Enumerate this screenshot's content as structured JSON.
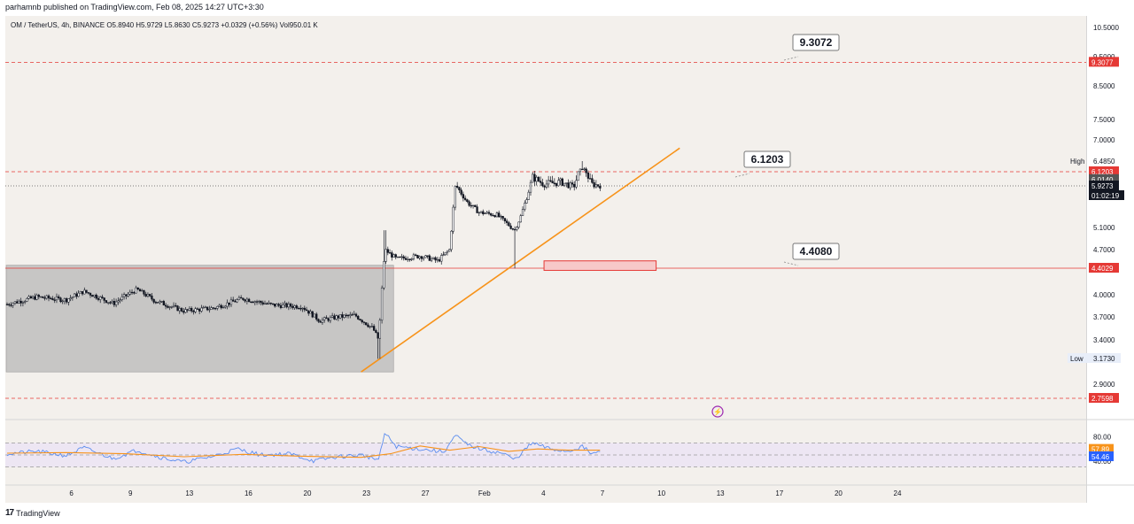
{
  "header": {
    "publisher": "parhamnb published on TradingView.com, Feb 08, 2025 14:27 UTC+3:30",
    "symbol_line": "OM / TetherUS, 4h, BINANCE  O5.8940  H5.9729  L5.8630  C5.9273  +0.0329 (+0.56%)  Vol950.01 K"
  },
  "footer": {
    "logo_text": "TradingView",
    "logo_mark": "17"
  },
  "colors": {
    "background": "#f3f0ec",
    "candle": "#131722",
    "trendline": "#f7931a",
    "resistance_red": "#e53935",
    "zone_gray": "#b8b8b8",
    "rsi_line": "#5b8def",
    "rsi_ma": "#f7931a",
    "rsi_band": "#ede6f3"
  },
  "chart_data": [
    {
      "type": "candlestick",
      "title": "",
      "x_ticks": [
        "6",
        "9",
        "13",
        "16",
        "20",
        "23",
        "27",
        "Feb",
        "4",
        "7",
        "10",
        "13",
        "17",
        "20",
        "24"
      ],
      "price_ticks": [
        {
          "label": "10.5000",
          "value": 10.5
        },
        {
          "label": "9.5000",
          "value": 9.5
        },
        {
          "label": "8.5000",
          "value": 8.5
        },
        {
          "label": "7.5000",
          "value": 7.5
        },
        {
          "label": "7.0000",
          "value": 7.0
        },
        {
          "label": "5.1000",
          "value": 5.1
        },
        {
          "label": "4.7000",
          "value": 4.7
        },
        {
          "label": "4.0000",
          "value": 4.0
        },
        {
          "label": "3.7000",
          "value": 3.7
        },
        {
          "label": "3.4000",
          "value": 3.4
        },
        {
          "label": "2.9000",
          "value": 2.9
        }
      ],
      "axis_badges": [
        {
          "label": "9.3077",
          "value": 9.3077,
          "color": "#e53935"
        },
        {
          "label": "6.1203",
          "value": 6.1203,
          "color": "#e53935"
        },
        {
          "label": "6.0140",
          "value": 6.014,
          "color": "#555555"
        },
        {
          "label": "5.9273",
          "value": 5.9273,
          "color": "#131722"
        },
        {
          "label": "4.4029",
          "value": 4.4029,
          "color": "#e53935"
        },
        {
          "label": "2.7598",
          "value": 2.7598,
          "color": "#e53935"
        }
      ],
      "countdown": "01:02:19",
      "high": {
        "label": "High",
        "value": "6.4850"
      },
      "low": {
        "label": "Low",
        "value": "3.1730"
      },
      "callouts": [
        {
          "label": "9.3072",
          "value": 9.3072
        },
        {
          "label": "6.1203",
          "value": 6.1203
        },
        {
          "label": "4.4080",
          "value": 4.408
        }
      ],
      "horizontal_levels": [
        {
          "value": 9.3077,
          "style": "dashed",
          "color": "#e53935"
        },
        {
          "value": 6.1203,
          "style": "dashed",
          "color": "#e53935"
        },
        {
          "value": 5.9273,
          "style": "dotted",
          "color": "#555555"
        },
        {
          "value": 4.4029,
          "style": "solid",
          "color": "#e53935"
        },
        {
          "value": 2.7598,
          "style": "dashed",
          "color": "#e53935"
        }
      ],
      "key_prices": [
        {
          "seg": 0,
          "price": 3.87
        },
        {
          "seg": 0.5,
          "price": 3.97
        },
        {
          "seg": 1.0,
          "price": 3.93
        },
        {
          "seg": 1.3,
          "price": 4.05
        },
        {
          "seg": 1.8,
          "price": 3.88
        },
        {
          "seg": 2.2,
          "price": 4.08
        },
        {
          "seg": 2.5,
          "price": 3.92
        },
        {
          "seg": 3.0,
          "price": 3.78
        },
        {
          "seg": 3.5,
          "price": 3.82
        },
        {
          "seg": 4.0,
          "price": 3.95
        },
        {
          "seg": 4.5,
          "price": 3.86
        },
        {
          "seg": 5.0,
          "price": 3.84
        },
        {
          "seg": 5.3,
          "price": 3.65
        },
        {
          "seg": 5.6,
          "price": 3.7
        },
        {
          "seg": 5.9,
          "price": 3.72
        },
        {
          "seg": 6.2,
          "price": 3.55
        },
        {
          "seg": 6.3,
          "price": 3.4
        },
        {
          "seg": 6.4,
          "price": 4.7
        },
        {
          "seg": 6.6,
          "price": 4.55
        },
        {
          "seg": 7.0,
          "price": 4.6
        },
        {
          "seg": 7.3,
          "price": 4.52
        },
        {
          "seg": 7.5,
          "price": 4.7
        },
        {
          "seg": 7.6,
          "price": 5.95
        },
        {
          "seg": 7.8,
          "price": 5.6
        },
        {
          "seg": 8.0,
          "price": 5.4
        },
        {
          "seg": 8.3,
          "price": 5.35
        },
        {
          "seg": 8.6,
          "price": 5.05
        },
        {
          "seg": 8.7,
          "price": 5.3
        },
        {
          "seg": 8.9,
          "price": 6.05
        },
        {
          "seg": 9.1,
          "price": 5.95
        },
        {
          "seg": 9.4,
          "price": 5.98
        },
        {
          "seg": 9.6,
          "price": 5.9
        },
        {
          "seg": 9.75,
          "price": 6.25
        },
        {
          "seg": 9.9,
          "price": 5.95
        },
        {
          "seg": 10.05,
          "price": 5.93
        }
      ],
      "wick_extremes": [
        {
          "seg": 6.3,
          "price": 3.17
        },
        {
          "seg": 6.4,
          "price": 5.05
        },
        {
          "seg": 8.6,
          "price": 4.4
        },
        {
          "seg": 9.75,
          "price": 6.485
        }
      ],
      "consolidation_zone": {
        "x_start_seg": 0,
        "x_end_seg": 6.55,
        "price_top": 4.45,
        "price_bottom": 3.03
      },
      "target_zone": {
        "x_start_seg": 9.1,
        "x_end_seg": 11.0,
        "price_top": 4.52,
        "price_bottom": 4.37
      },
      "trendline": {
        "from": {
          "seg": 6.0,
          "price": 3.03
        },
        "to": {
          "seg": 11.4,
          "price": 6.8
        }
      }
    },
    {
      "type": "line",
      "title": "",
      "indicator": "RSI",
      "ticks": [
        {
          "label": "80.00",
          "value": 80
        },
        {
          "label": "40.00",
          "value": 40
        }
      ],
      "badges": [
        {
          "label": "57.89",
          "value": 57.89,
          "color": "#f7931a"
        },
        {
          "label": "54.46",
          "value": 54.46,
          "color": "#2962ff"
        }
      ],
      "band_levels": [
        70,
        50,
        30
      ],
      "rsi_points": [
        {
          "seg": 0,
          "v": 52
        },
        {
          "seg": 0.5,
          "v": 56
        },
        {
          "seg": 1.0,
          "v": 49
        },
        {
          "seg": 1.3,
          "v": 62
        },
        {
          "seg": 1.8,
          "v": 44
        },
        {
          "seg": 2.2,
          "v": 58
        },
        {
          "seg": 2.6,
          "v": 46
        },
        {
          "seg": 3.0,
          "v": 38
        },
        {
          "seg": 3.5,
          "v": 48
        },
        {
          "seg": 3.9,
          "v": 60
        },
        {
          "seg": 4.3,
          "v": 50
        },
        {
          "seg": 4.8,
          "v": 52
        },
        {
          "seg": 5.2,
          "v": 40
        },
        {
          "seg": 5.6,
          "v": 47
        },
        {
          "seg": 6.0,
          "v": 50
        },
        {
          "seg": 6.3,
          "v": 42
        },
        {
          "seg": 6.4,
          "v": 86
        },
        {
          "seg": 6.6,
          "v": 64
        },
        {
          "seg": 7.0,
          "v": 60
        },
        {
          "seg": 7.4,
          "v": 55
        },
        {
          "seg": 7.6,
          "v": 82
        },
        {
          "seg": 7.8,
          "v": 67
        },
        {
          "seg": 8.1,
          "v": 58
        },
        {
          "seg": 8.4,
          "v": 53
        },
        {
          "seg": 8.6,
          "v": 42
        },
        {
          "seg": 8.9,
          "v": 70
        },
        {
          "seg": 9.2,
          "v": 60
        },
        {
          "seg": 9.5,
          "v": 56
        },
        {
          "seg": 9.75,
          "v": 64
        },
        {
          "seg": 9.9,
          "v": 52
        },
        {
          "seg": 10.05,
          "v": 54.46
        }
      ],
      "ma_points": [
        {
          "seg": 0,
          "v": 53
        },
        {
          "seg": 1.0,
          "v": 54
        },
        {
          "seg": 2.0,
          "v": 52
        },
        {
          "seg": 3.0,
          "v": 47
        },
        {
          "seg": 4.0,
          "v": 51
        },
        {
          "seg": 5.0,
          "v": 48
        },
        {
          "seg": 6.0,
          "v": 46
        },
        {
          "seg": 6.5,
          "v": 52
        },
        {
          "seg": 7.0,
          "v": 65
        },
        {
          "seg": 7.5,
          "v": 58
        },
        {
          "seg": 8.0,
          "v": 64
        },
        {
          "seg": 8.5,
          "v": 56
        },
        {
          "seg": 9.0,
          "v": 60
        },
        {
          "seg": 9.5,
          "v": 58
        },
        {
          "seg": 10.05,
          "v": 57.89
        }
      ]
    }
  ]
}
